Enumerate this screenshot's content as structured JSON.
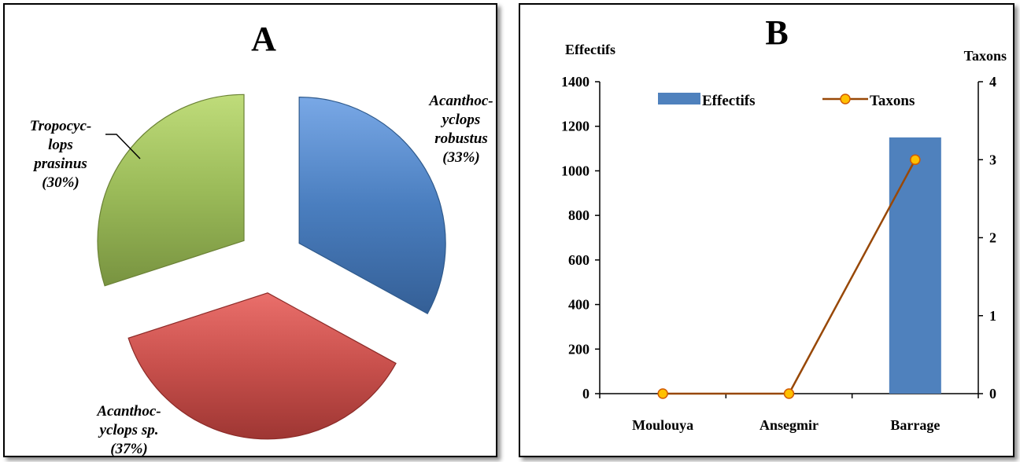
{
  "chart_data": [
    {
      "type": "pie",
      "panel_label": "A",
      "slices": [
        {
          "name": "Acanthoc-yclops robustus",
          "value": 33,
          "label_lines": [
            "Acanthoc-",
            "yclops",
            "robustus",
            "(33%)"
          ],
          "color": "#4a7ebf"
        },
        {
          "name": "Acanthoc-yclops sp.",
          "value": 37,
          "label_lines": [
            "Acanthoc-",
            "yclops sp.",
            "(37%)"
          ],
          "color": "#c0504d"
        },
        {
          "name": "Tropocyc-lops prasinus",
          "value": 30,
          "label_lines": [
            "Tropocyc-",
            "lops",
            "prasinus",
            "(30%)"
          ],
          "color": "#9bbb59"
        }
      ]
    },
    {
      "type": "bar+line",
      "panel_label": "B",
      "categories": [
        "Moulouya",
        "Ansegmir",
        "Barrage"
      ],
      "series": [
        {
          "name": "Effectifs",
          "type": "bar",
          "axis": "left",
          "values": [
            0,
            0,
            1150
          ],
          "color": "#4f81bd"
        },
        {
          "name": "Taxons",
          "type": "line",
          "axis": "right",
          "values": [
            0,
            0,
            3
          ],
          "color": "#984807",
          "marker_fill": "#ffc000"
        }
      ],
      "ylabel": "Effectifs",
      "y2label": "Taxons",
      "ylim": [
        0,
        1400
      ],
      "yticks": [
        0,
        200,
        400,
        600,
        800,
        1000,
        1200,
        1400
      ],
      "y2lim": [
        0,
        4
      ],
      "y2ticks": [
        0,
        1,
        2,
        3,
        4
      ],
      "grid": false,
      "legend": "top"
    }
  ]
}
